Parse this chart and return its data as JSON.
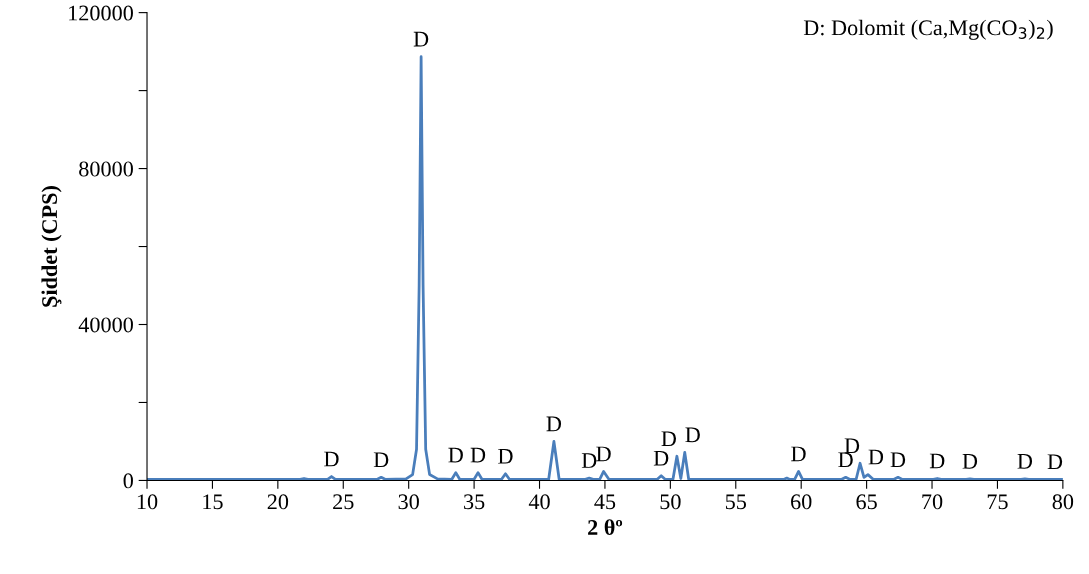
{
  "chart_data": {
    "type": "line",
    "xlabel": "2 θº",
    "ylabel": "Şiddet (CPS)",
    "xlim": [
      10,
      80
    ],
    "xticks": [
      10,
      15,
      20,
      25,
      30,
      35,
      40,
      45,
      50,
      55,
      60,
      65,
      70,
      75,
      80
    ],
    "ylim": [
      0,
      120000
    ],
    "yticks": [
      0,
      {
        "value": 20000,
        "label": null
      },
      40000,
      {
        "value": 60000,
        "label": null
      },
      80000,
      {
        "value": 100000,
        "label": null
      },
      120000
    ],
    "grid": false,
    "marker": "none",
    "line_style": "solid",
    "series": [
      {
        "color": "#4a7ebb",
        "x": [
          10,
          21.7,
          22.0,
          22.3,
          23.8,
          24.1,
          24.4,
          27.6,
          27.9,
          28.2,
          29.8,
          30.3,
          30.6,
          30.8,
          30.95,
          31.1,
          31.3,
          31.6,
          32.2,
          33.3,
          33.6,
          33.9,
          35.0,
          35.3,
          35.6,
          37.1,
          37.4,
          37.7,
          40.7,
          41.1,
          41.5,
          43.5,
          43.8,
          44.1,
          44.6,
          44.9,
          45.3,
          49.0,
          49.3,
          49.6,
          50.2,
          50.5,
          50.8,
          51.1,
          51.4,
          58.7,
          58.9,
          59.1,
          59.5,
          59.8,
          60.1,
          63.1,
          63.4,
          63.7,
          64.2,
          64.5,
          64.8,
          65.1,
          65.5,
          67.1,
          67.4,
          67.7,
          70.1,
          70.4,
          70.7,
          72.6,
          72.9,
          73.2,
          76.8,
          77.1,
          77.4,
          80
        ],
        "values": [
          300,
          300,
          500,
          300,
          300,
          1000,
          300,
          300,
          800,
          300,
          400,
          1500,
          8000,
          50000,
          108700,
          50000,
          8000,
          1500,
          400,
          300,
          2000,
          300,
          300,
          2000,
          300,
          300,
          1700,
          300,
          300,
          10000,
          300,
          300,
          600,
          300,
          300,
          2300,
          300,
          300,
          1200,
          300,
          300,
          6200,
          500,
          7200,
          300,
          300,
          600,
          300,
          300,
          2300,
          300,
          300,
          800,
          300,
          300,
          4400,
          800,
          1500,
          300,
          300,
          800,
          300,
          300,
          500,
          300,
          300,
          400,
          300,
          300,
          400,
          300,
          300
        ]
      }
    ],
    "annotations": [
      "D: Dolomit (Ca,Mg(CO$_{3}$)$_{2}$)",
      {
        "text": "D",
        "x": 24.1,
        "y": 1000
      },
      {
        "text": "D",
        "x": 27.9,
        "y": 800
      },
      {
        "text": "D",
        "x": 30.95,
        "y": 108700
      },
      {
        "text": "D",
        "x": 33.6,
        "y": 2000
      },
      {
        "text": "D",
        "x": 35.3,
        "y": 2000
      },
      {
        "text": "D",
        "x": 37.4,
        "y": 1700
      },
      {
        "text": "D",
        "x": 41.1,
        "y": 10000
      },
      {
        "text": "D",
        "x": 43.8,
        "y": 600
      },
      {
        "text": "D",
        "x": 44.9,
        "y": 2300
      },
      {
        "text": "D",
        "x": 49.3,
        "y": 1200
      },
      {
        "text": "D",
        "x": 50.5,
        "y": 6200
      },
      {
        "text": "D",
        "x": 51.1,
        "y": 7200
      },
      {
        "text": "D",
        "x": 59.8,
        "y": 2300
      },
      {
        "text": "D",
        "x": 63.4,
        "y": 800
      },
      {
        "text": "D",
        "x": 64.5,
        "y": 4400
      },
      {
        "text": "D",
        "x": 65.1,
        "y": 1500
      },
      {
        "text": "D",
        "x": 67.4,
        "y": 800
      },
      {
        "text": "D",
        "x": 70.4,
        "y": 500
      },
      {
        "text": "D",
        "x": 72.9,
        "y": 400
      },
      {
        "text": "D",
        "x": 77.1,
        "y": 400
      },
      {
        "text": "D",
        "x": 79.4,
        "y": 300
      }
    ]
  }
}
